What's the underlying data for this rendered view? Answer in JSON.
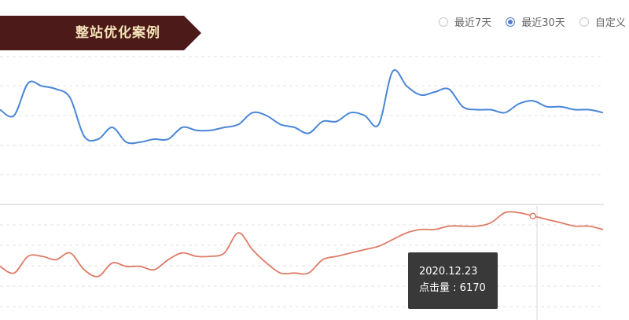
{
  "header": {
    "title": "整站优化案例"
  },
  "range_options": [
    {
      "label": "最近7天",
      "checked": false
    },
    {
      "label": "最近30天",
      "checked": true
    },
    {
      "label": "自定义",
      "checked": false
    }
  ],
  "colors": {
    "banner": "#4d1a1a",
    "accent": "#4f7ec9",
    "series_blue": "#4a86d8",
    "series_red": "#e07b67"
  },
  "chart_data": {
    "type": "line",
    "series": [
      {
        "values": [
          62,
          60,
          71,
          70,
          69,
          66,
          53,
          52,
          56,
          51,
          51,
          52,
          52,
          56,
          55,
          55,
          56,
          57,
          61,
          60,
          57,
          56,
          54,
          58,
          58,
          61,
          60,
          57,
          75,
          70,
          67,
          68,
          69,
          63,
          62,
          62,
          61,
          64,
          65,
          63,
          63,
          62,
          62,
          61
        ]
      },
      {
        "values": [
          32,
          30,
          35,
          35,
          34,
          36,
          31,
          29,
          33,
          32,
          32,
          31,
          34,
          36,
          35,
          35,
          36,
          42,
          37,
          33,
          30,
          30,
          30,
          34,
          35,
          36,
          37,
          38,
          40,
          42,
          43,
          43,
          44,
          44,
          44,
          45,
          48,
          48,
          47,
          46,
          45,
          44,
          44,
          43
        ]
      }
    ],
    "tooltip": {
      "date": "2020.12.23",
      "label": "点击量",
      "value": 6170
    }
  }
}
